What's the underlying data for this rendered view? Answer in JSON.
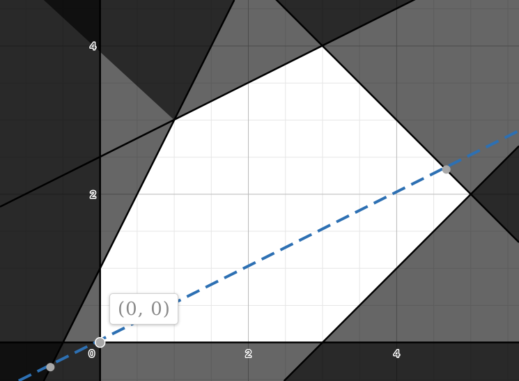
{
  "chart_data": {
    "type": "scatter",
    "title": "",
    "xlabel": "",
    "ylabel": "",
    "xlim": [
      -1.35,
      5.65
    ],
    "ylim": [
      -0.52,
      4.62
    ],
    "grid": true,
    "minor_grid_step": 0.5,
    "major_grid_step": 2,
    "x_ticks": [
      0,
      2,
      4
    ],
    "y_ticks": [
      2,
      4
    ],
    "x_tick_labels": [
      "0",
      "2",
      "4"
    ],
    "y_tick_labels": [
      "2",
      "4"
    ],
    "feasible_region": {
      "vertices": [
        [
          0,
          0
        ],
        [
          0,
          1
        ],
        [
          1,
          3
        ],
        [
          3,
          4
        ],
        [
          5,
          2
        ],
        [
          3,
          0
        ]
      ],
      "fill": "#ffffff"
    },
    "shaded_regions": [
      {
        "polygon": [
          [
            -1.35,
            -0.52
          ],
          [
            0,
            -0.52
          ],
          [
            0,
            4.62
          ],
          [
            -1.35,
            4.62
          ]
        ],
        "opacity": 0.6
      },
      {
        "polygon": [
          [
            -1.35,
            -0.52
          ],
          [
            5.65,
            -0.52
          ],
          [
            5.65,
            0
          ],
          [
            -1.35,
            0
          ]
        ],
        "opacity": 0.6
      },
      {
        "polygon": [
          [
            -1.35,
            4.62
          ],
          [
            -0.76,
            4.62
          ],
          [
            1,
            3
          ],
          [
            3,
            4
          ],
          [
            5.65,
            5.33
          ],
          [
            -1.35,
            5.33
          ]
        ],
        "opacity": 0.6
      },
      {
        "polygon": [
          [
            -0.76,
            -0.52
          ],
          [
            1.81,
            4.62
          ],
          [
            -1.35,
            4.62
          ],
          [
            -1.35,
            -0.52
          ]
        ],
        "opacity": 0.6
      },
      {
        "polygon": [
          [
            2.48,
            -0.52
          ],
          [
            5.65,
            2.65
          ],
          [
            5.65,
            -0.52
          ]
        ],
        "opacity": 0.6
      },
      {
        "polygon": [
          [
            1.38,
            5.62
          ],
          [
            5.65,
            1.35
          ],
          [
            5.65,
            5.62
          ]
        ],
        "opacity": 0.6
      }
    ],
    "boundary_lines": [
      {
        "points": [
          [
            -1.35,
            0
          ],
          [
            5.65,
            0
          ]
        ]
      },
      {
        "points": [
          [
            0,
            -0.52
          ],
          [
            0,
            4.62
          ]
        ]
      },
      {
        "points": [
          [
            -0.76,
            -0.52
          ],
          [
            1.81,
            4.62
          ]
        ]
      },
      {
        "points": [
          [
            -1.35,
            1.83
          ],
          [
            5.65,
            5.33
          ]
        ]
      },
      {
        "points": [
          [
            2.48,
            -0.52
          ],
          [
            5.65,
            2.65
          ]
        ]
      },
      {
        "points": [
          [
            1.38,
            5.62
          ],
          [
            5.65,
            1.35
          ]
        ]
      }
    ],
    "series": [
      {
        "kind": "dashed-line",
        "points": [
          [
            -1.35,
            -0.643
          ],
          [
            5.65,
            2.857
          ]
        ],
        "color": "#2d70b3"
      },
      {
        "kind": "points",
        "x": [
          -0.67,
          0,
          4.67
        ],
        "y": [
          -0.333,
          0,
          2.333
        ],
        "color": "#a8a8a8"
      }
    ],
    "annotations": [
      {
        "text": "(0, 0)",
        "x": 0,
        "y": 0
      }
    ]
  }
}
